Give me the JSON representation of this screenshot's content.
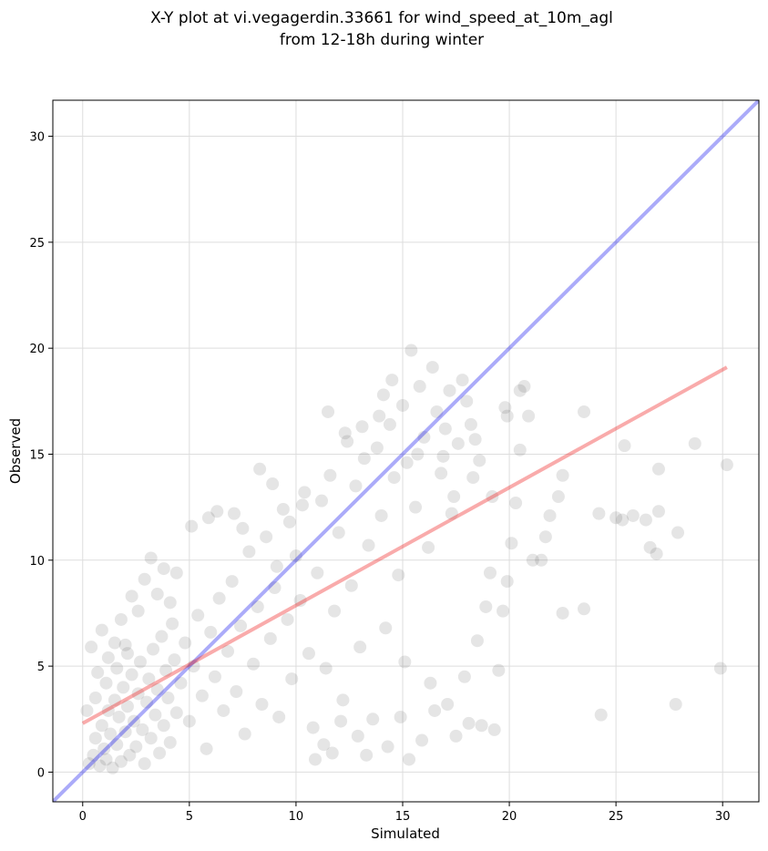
{
  "chart_data": {
    "type": "scatter",
    "title_line1": "X-Y plot at vi.vegagerdin.33661 for wind_speed_at_10m_agl",
    "title_line2": "from 12-18h during winter",
    "xlabel": "Simulated",
    "ylabel": "Observed",
    "xlim": [
      -1.4,
      31.7
    ],
    "ylim": [
      -1.4,
      31.7
    ],
    "xticks": [
      0,
      5,
      10,
      15,
      20,
      25,
      30
    ],
    "yticks": [
      0,
      5,
      10,
      15,
      20,
      25,
      30
    ],
    "grid": true,
    "colors": {
      "points": "#333333",
      "identity_line": "#0000ee",
      "fit_line": "#ee2222",
      "grid": "#dddddd"
    },
    "identity_line": {
      "from": [
        -1.4,
        -1.4
      ],
      "to": [
        31.7,
        31.7
      ]
    },
    "fit_line": {
      "from": [
        0,
        2.3
      ],
      "to": [
        30.2,
        19.1
      ]
    },
    "points": [
      [
        0.3,
        0.4
      ],
      [
        0.5,
        0.8
      ],
      [
        0.6,
        1.6
      ],
      [
        0.8,
        0.3
      ],
      [
        0.9,
        2.2
      ],
      [
        1.0,
        1.1
      ],
      [
        1.1,
        0.6
      ],
      [
        1.2,
        2.9
      ],
      [
        1.3,
        1.8
      ],
      [
        1.4,
        0.2
      ],
      [
        1.5,
        3.4
      ],
      [
        1.6,
        1.3
      ],
      [
        1.7,
        2.6
      ],
      [
        1.8,
        0.5
      ],
      [
        1.9,
        4.0
      ],
      [
        2.0,
        1.9
      ],
      [
        2.1,
        3.1
      ],
      [
        2.2,
        0.8
      ],
      [
        2.3,
        4.6
      ],
      [
        2.4,
        2.4
      ],
      [
        2.5,
        1.2
      ],
      [
        2.6,
        3.7
      ],
      [
        2.7,
        5.2
      ],
      [
        2.8,
        2.0
      ],
      [
        2.9,
        0.4
      ],
      [
        3.0,
        3.3
      ],
      [
        3.1,
        4.4
      ],
      [
        3.2,
        1.6
      ],
      [
        3.3,
        5.8
      ],
      [
        3.4,
        2.7
      ],
      [
        3.5,
        3.9
      ],
      [
        3.6,
        0.9
      ],
      [
        3.7,
        6.4
      ],
      [
        3.8,
        2.2
      ],
      [
        3.9,
        4.8
      ],
      [
        4.0,
        3.5
      ],
      [
        4.1,
        1.4
      ],
      [
        4.2,
        7.0
      ],
      [
        4.3,
        5.3
      ],
      [
        4.4,
        2.8
      ],
      [
        0.2,
        2.9
      ],
      [
        0.4,
        5.9
      ],
      [
        0.7,
        4.7
      ],
      [
        0.9,
        6.7
      ],
      [
        1.2,
        5.4
      ],
      [
        1.5,
        6.1
      ],
      [
        1.8,
        7.2
      ],
      [
        2.0,
        6.0
      ],
      [
        2.3,
        8.3
      ],
      [
        2.6,
        7.6
      ],
      [
        2.9,
        9.1
      ],
      [
        3.2,
        10.1
      ],
      [
        3.5,
        8.4
      ],
      [
        3.8,
        9.6
      ],
      [
        4.1,
        8.0
      ],
      [
        4.4,
        9.4
      ],
      [
        2.1,
        5.6
      ],
      [
        1.1,
        4.2
      ],
      [
        0.6,
        3.5
      ],
      [
        1.6,
        4.9
      ],
      [
        4.6,
        4.2
      ],
      [
        4.8,
        6.1
      ],
      [
        5.0,
        2.4
      ],
      [
        5.2,
        5.0
      ],
      [
        5.4,
        7.4
      ],
      [
        5.6,
        3.6
      ],
      [
        5.8,
        1.1
      ],
      [
        6.0,
        6.6
      ],
      [
        6.2,
        4.5
      ],
      [
        6.4,
        8.2
      ],
      [
        6.6,
        2.9
      ],
      [
        6.8,
        5.7
      ],
      [
        7.0,
        9.0
      ],
      [
        7.2,
        3.8
      ],
      [
        7.4,
        6.9
      ],
      [
        7.6,
        1.8
      ],
      [
        7.8,
        10.4
      ],
      [
        8.0,
        5.1
      ],
      [
        8.2,
        7.8
      ],
      [
        8.4,
        3.2
      ],
      [
        8.6,
        11.1
      ],
      [
        8.8,
        6.3
      ],
      [
        9.0,
        8.7
      ],
      [
        9.2,
        2.6
      ],
      [
        9.4,
        12.4
      ],
      [
        9.6,
        7.2
      ],
      [
        9.8,
        4.4
      ],
      [
        10.0,
        10.2
      ],
      [
        10.2,
        8.1
      ],
      [
        10.4,
        13.2
      ],
      [
        5.1,
        11.6
      ],
      [
        5.9,
        12.0
      ],
      [
        6.3,
        12.3
      ],
      [
        7.1,
        12.2
      ],
      [
        7.5,
        11.5
      ],
      [
        8.3,
        14.3
      ],
      [
        8.9,
        13.6
      ],
      [
        9.1,
        9.7
      ],
      [
        9.7,
        11.8
      ],
      [
        10.3,
        12.6
      ],
      [
        10.6,
        5.6
      ],
      [
        10.8,
        2.1
      ],
      [
        11.0,
        9.4
      ],
      [
        11.2,
        12.8
      ],
      [
        11.4,
        4.9
      ],
      [
        11.6,
        14.0
      ],
      [
        11.8,
        7.6
      ],
      [
        12.0,
        11.3
      ],
      [
        12.2,
        3.4
      ],
      [
        12.4,
        15.6
      ],
      [
        12.6,
        8.8
      ],
      [
        12.8,
        13.5
      ],
      [
        13.0,
        5.9
      ],
      [
        13.2,
        14.8
      ],
      [
        13.4,
        10.7
      ],
      [
        13.6,
        2.5
      ],
      [
        13.8,
        15.3
      ],
      [
        14.0,
        12.1
      ],
      [
        14.2,
        6.8
      ],
      [
        14.4,
        16.4
      ],
      [
        14.6,
        13.9
      ],
      [
        14.8,
        9.3
      ],
      [
        15.0,
        17.3
      ],
      [
        15.2,
        14.6
      ],
      [
        15.4,
        19.9
      ],
      [
        15.6,
        12.5
      ],
      [
        15.8,
        18.2
      ],
      [
        16.0,
        15.8
      ],
      [
        16.2,
        10.6
      ],
      [
        16.4,
        19.1
      ],
      [
        16.6,
        17.0
      ],
      [
        16.8,
        14.1
      ],
      [
        17.0,
        16.2
      ],
      [
        17.2,
        18.0
      ],
      [
        17.4,
        13.0
      ],
      [
        17.6,
        15.5
      ],
      [
        17.8,
        18.5
      ],
      [
        18.0,
        17.5
      ],
      [
        18.2,
        16.4
      ],
      [
        18.4,
        15.7
      ],
      [
        11.5,
        17.0
      ],
      [
        12.3,
        16.0
      ],
      [
        13.1,
        16.3
      ],
      [
        13.9,
        16.8
      ],
      [
        14.1,
        17.8
      ],
      [
        14.5,
        18.5
      ],
      [
        15.7,
        15.0
      ],
      [
        16.9,
        14.9
      ],
      [
        17.3,
        12.2
      ],
      [
        18.3,
        13.9
      ],
      [
        10.9,
        0.6
      ],
      [
        11.3,
        1.3
      ],
      [
        11.7,
        0.9
      ],
      [
        12.1,
        2.4
      ],
      [
        12.9,
        1.7
      ],
      [
        13.3,
        0.8
      ],
      [
        14.3,
        1.2
      ],
      [
        14.9,
        2.6
      ],
      [
        15.3,
        0.6
      ],
      [
        15.9,
        1.5
      ],
      [
        16.5,
        2.9
      ],
      [
        17.1,
        3.2
      ],
      [
        17.5,
        1.7
      ],
      [
        18.1,
        2.3
      ],
      [
        18.7,
        2.2
      ],
      [
        19.3,
        2.0
      ],
      [
        17.9,
        4.5
      ],
      [
        18.5,
        6.2
      ],
      [
        16.3,
        4.2
      ],
      [
        15.1,
        5.2
      ],
      [
        18.9,
        7.8
      ],
      [
        19.1,
        9.4
      ],
      [
        19.5,
        4.8
      ],
      [
        19.7,
        7.6
      ],
      [
        19.9,
        9.0
      ],
      [
        20.1,
        10.8
      ],
      [
        20.3,
        12.7
      ],
      [
        20.5,
        15.2
      ],
      [
        20.9,
        16.8
      ],
      [
        21.1,
        10.0
      ],
      [
        21.5,
        10.0
      ],
      [
        21.7,
        11.1
      ],
      [
        21.9,
        12.1
      ],
      [
        22.3,
        13.0
      ],
      [
        22.5,
        14.0
      ],
      [
        22.5,
        7.5
      ],
      [
        23.5,
        7.7
      ],
      [
        23.5,
        17.0
      ],
      [
        24.2,
        12.2
      ],
      [
        24.3,
        2.7
      ],
      [
        25.0,
        12.0
      ],
      [
        25.3,
        11.9
      ],
      [
        25.4,
        15.4
      ],
      [
        25.8,
        12.1
      ],
      [
        26.4,
        11.9
      ],
      [
        26.6,
        10.6
      ],
      [
        26.9,
        10.3
      ],
      [
        27.0,
        12.3
      ],
      [
        27.0,
        14.3
      ],
      [
        27.8,
        3.2
      ],
      [
        27.9,
        11.3
      ],
      [
        28.7,
        15.5
      ],
      [
        29.9,
        4.9
      ],
      [
        30.2,
        14.5
      ],
      [
        19.8,
        17.2
      ],
      [
        19.9,
        16.8
      ],
      [
        20.7,
        18.2
      ],
      [
        20.5,
        18.0
      ],
      [
        18.6,
        14.7
      ],
      [
        19.2,
        13.0
      ]
    ]
  }
}
